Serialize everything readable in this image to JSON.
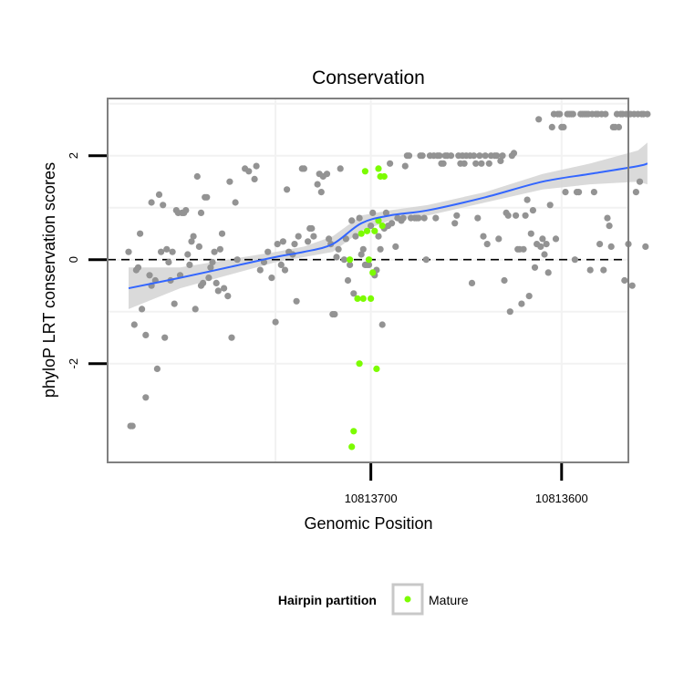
{
  "chart_data": {
    "type": "scatter",
    "title": "Conservation",
    "xlabel": "Genomic Position",
    "ylabel": "phyloP LRT conservation scores",
    "x_reversed": true,
    "xlim": [
      10813838,
      10813565
    ],
    "ylim": [
      -3.9,
      3.1
    ],
    "x_ticks": [
      10813700,
      10813600
    ],
    "x_tick_labels": [
      "10813700",
      "10813600"
    ],
    "y_ticks": [
      -2,
      0,
      2
    ],
    "y_tick_labels": [
      "-2",
      "0",
      "2"
    ],
    "grid": true,
    "reference_line": {
      "y": 0,
      "style": "dashed"
    },
    "legend": {
      "title": "Hairpin partition",
      "position": "bottom",
      "entries": [
        {
          "label": "Mature",
          "color": "#7cfc00"
        }
      ]
    },
    "colors": {
      "other": "#939393",
      "mature": "#7cfc00",
      "smooth": "#3366ff",
      "band": "#d3d3d3",
      "panel_border": "#808080"
    },
    "series": [
      {
        "group": "other",
        "points": [
          [
            10813827,
            0.15
          ],
          [
            10813826,
            -3.2
          ],
          [
            10813825,
            -3.2
          ],
          [
            10813824,
            -1.25
          ],
          [
            10813823,
            -0.2
          ],
          [
            10813822,
            -0.15
          ],
          [
            10813821,
            0.5
          ],
          [
            10813820,
            -0.95
          ],
          [
            10813818,
            -1.45
          ],
          [
            10813818,
            -2.65
          ],
          [
            10813816,
            -0.3
          ],
          [
            10813815,
            1.1
          ],
          [
            10813815,
            -0.5
          ],
          [
            10813813,
            -0.4
          ],
          [
            10813812,
            -2.1
          ],
          [
            10813811,
            1.25
          ],
          [
            10813810,
            0.15
          ],
          [
            10813809,
            1.05
          ],
          [
            10813808,
            -1.5
          ],
          [
            10813807,
            0.2
          ],
          [
            10813806,
            -0.05
          ],
          [
            10813805,
            -0.4
          ],
          [
            10813804,
            0.15
          ],
          [
            10813803,
            -0.85
          ],
          [
            10813802,
            0.95
          ],
          [
            10813801,
            0.9
          ],
          [
            10813800,
            -0.3
          ],
          [
            10813799,
            0.9
          ],
          [
            10813798,
            0.9
          ],
          [
            10813797,
            0.95
          ],
          [
            10813796,
            0.1
          ],
          [
            10813795,
            -0.1
          ],
          [
            10813794,
            0.35
          ],
          [
            10813793,
            0.45
          ],
          [
            10813792,
            -0.95
          ],
          [
            10813791,
            1.6
          ],
          [
            10813790,
            0.25
          ],
          [
            10813789,
            -0.5
          ],
          [
            10813789,
            0.9
          ],
          [
            10813788,
            -0.45
          ],
          [
            10813787,
            1.2
          ],
          [
            10813786,
            1.2
          ],
          [
            10813785,
            -0.35
          ],
          [
            10813784,
            -0.15
          ],
          [
            10813783,
            -0.05
          ],
          [
            10813782,
            0.15
          ],
          [
            10813781,
            -0.45
          ],
          [
            10813780,
            -0.6
          ],
          [
            10813779,
            0.2
          ],
          [
            10813778,
            0.5
          ],
          [
            10813777,
            -0.55
          ],
          [
            10813775,
            -0.7
          ],
          [
            10813774,
            1.5
          ],
          [
            10813773,
            -1.5
          ],
          [
            10813771,
            1.1
          ],
          [
            10813770,
            0.0
          ],
          [
            10813766,
            1.75
          ],
          [
            10813764,
            1.7
          ],
          [
            10813761,
            1.55
          ],
          [
            10813760,
            1.8
          ],
          [
            10813758,
            -0.2
          ],
          [
            10813756,
            -0.05
          ],
          [
            10813754,
            0.15
          ],
          [
            10813752,
            -0.35
          ],
          [
            10813750,
            -1.2
          ],
          [
            10813749,
            0.3
          ],
          [
            10813747,
            -0.1
          ],
          [
            10813746,
            0.35
          ],
          [
            10813745,
            -0.2
          ],
          [
            10813744,
            1.35
          ],
          [
            10813743,
            0.15
          ],
          [
            10813741,
            0.1
          ],
          [
            10813740,
            0.3
          ],
          [
            10813739,
            -0.8
          ],
          [
            10813738,
            0.45
          ],
          [
            10813736,
            1.75
          ],
          [
            10813735,
            1.75
          ],
          [
            10813733,
            0.35
          ],
          [
            10813732,
            0.6
          ],
          [
            10813731,
            0.6
          ],
          [
            10813730,
            0.45
          ],
          [
            10813728,
            1.45
          ],
          [
            10813727,
            1.65
          ],
          [
            10813726,
            1.3
          ],
          [
            10813725,
            1.6
          ],
          [
            10813723,
            1.65
          ],
          [
            10813722,
            0.4
          ],
          [
            10813721,
            0.3
          ],
          [
            10813720,
            -1.05
          ],
          [
            10813719,
            -1.05
          ],
          [
            10813718,
            0.05
          ],
          [
            10813717,
            0.2
          ],
          [
            10813716,
            1.75
          ],
          [
            10813714,
            0.0
          ],
          [
            10813713,
            0.4
          ],
          [
            10813712,
            -0.4
          ],
          [
            10813711,
            -0.1
          ],
          [
            10813710,
            0.75
          ],
          [
            10813709,
            -0.65
          ],
          [
            10813708,
            0.45
          ],
          [
            10813706,
            0.8
          ],
          [
            10813705,
            0.1
          ],
          [
            10813704,
            0.2
          ],
          [
            10813703,
            -0.1
          ],
          [
            10813702,
            -0.1
          ],
          [
            10813701,
            -0.1
          ],
          [
            10813700,
            0.65
          ],
          [
            10813699,
            0.9
          ],
          [
            10813698,
            -0.3
          ],
          [
            10813697,
            -0.2
          ],
          [
            10813696,
            0.45
          ],
          [
            10813695,
            0.2
          ],
          [
            10813694,
            -1.25
          ],
          [
            10813693,
            0.6
          ],
          [
            10813692,
            0.9
          ],
          [
            10813691,
            0.65
          ],
          [
            10813690,
            1.85
          ],
          [
            10813689,
            0.7
          ],
          [
            10813687,
            0.25
          ],
          [
            10813686,
            0.8
          ],
          [
            10813684,
            0.75
          ],
          [
            10813683,
            0.8
          ],
          [
            10813682,
            1.8
          ],
          [
            10813681,
            2.0
          ],
          [
            10813680,
            2.0
          ],
          [
            10813679,
            0.8
          ],
          [
            10813677,
            0.8
          ],
          [
            10813676,
            0.8
          ],
          [
            10813675,
            0.8
          ],
          [
            10813674,
            2.0
          ],
          [
            10813673,
            2.0
          ],
          [
            10813672,
            0.8
          ],
          [
            10813671,
            0.0
          ],
          [
            10813669,
            2.0
          ],
          [
            10813667,
            2.0
          ],
          [
            10813666,
            0.8
          ],
          [
            10813665,
            2.0
          ],
          [
            10813664,
            2.0
          ],
          [
            10813663,
            1.85
          ],
          [
            10813662,
            1.85
          ],
          [
            10813661,
            2.0
          ],
          [
            10813660,
            2.0
          ],
          [
            10813658,
            2.0
          ],
          [
            10813656,
            0.7
          ],
          [
            10813655,
            0.85
          ],
          [
            10813654,
            2.0
          ],
          [
            10813653,
            1.85
          ],
          [
            10813652,
            2.0
          ],
          [
            10813651,
            1.85
          ],
          [
            10813650,
            2.0
          ],
          [
            10813648,
            2.0
          ],
          [
            10813647,
            -0.45
          ],
          [
            10813646,
            2.0
          ],
          [
            10813645,
            1.85
          ],
          [
            10813644,
            0.8
          ],
          [
            10813643,
            2.0
          ],
          [
            10813642,
            1.85
          ],
          [
            10813641,
            0.45
          ],
          [
            10813640,
            2.0
          ],
          [
            10813639,
            0.3
          ],
          [
            10813638,
            1.85
          ],
          [
            10813637,
            2.0
          ],
          [
            10813635,
            2.0
          ],
          [
            10813634,
            2.0
          ],
          [
            10813633,
            0.4
          ],
          [
            10813632,
            1.9
          ],
          [
            10813631,
            2.0
          ],
          [
            10813630,
            -0.4
          ],
          [
            10813629,
            0.9
          ],
          [
            10813628,
            0.85
          ],
          [
            10813627,
            -1.0
          ],
          [
            10813626,
            2.0
          ],
          [
            10813625,
            2.05
          ],
          [
            10813624,
            0.85
          ],
          [
            10813623,
            0.2
          ],
          [
            10813622,
            0.2
          ],
          [
            10813621,
            -0.85
          ],
          [
            10813620,
            0.2
          ],
          [
            10813619,
            0.85
          ],
          [
            10813618,
            1.15
          ],
          [
            10813617,
            -0.7
          ],
          [
            10813616,
            0.5
          ],
          [
            10813615,
            0.95
          ],
          [
            10813614,
            -0.15
          ],
          [
            10813613,
            0.3
          ],
          [
            10813612,
            2.7
          ],
          [
            10813611,
            0.25
          ],
          [
            10813610,
            0.4
          ],
          [
            10813609,
            0.1
          ],
          [
            10813608,
            0.3
          ],
          [
            10813607,
            -0.25
          ],
          [
            10813606,
            1.05
          ],
          [
            10813605,
            2.55
          ],
          [
            10813604,
            2.8
          ],
          [
            10813603,
            0.4
          ],
          [
            10813602,
            2.8
          ],
          [
            10813601,
            2.8
          ],
          [
            10813600,
            2.55
          ],
          [
            10813599,
            2.55
          ],
          [
            10813598,
            1.3
          ],
          [
            10813597,
            2.8
          ],
          [
            10813596,
            2.8
          ],
          [
            10813595,
            2.8
          ],
          [
            10813594,
            2.8
          ],
          [
            10813593,
            0.0
          ],
          [
            10813592,
            1.3
          ],
          [
            10813591,
            1.3
          ],
          [
            10813590,
            2.8
          ],
          [
            10813589,
            2.8
          ],
          [
            10813588,
            2.8
          ],
          [
            10813587,
            2.8
          ],
          [
            10813586,
            2.8
          ],
          [
            10813585,
            -0.2
          ],
          [
            10813584,
            2.8
          ],
          [
            10813583,
            1.3
          ],
          [
            10813582,
            2.8
          ],
          [
            10813581,
            2.8
          ],
          [
            10813580,
            0.3
          ],
          [
            10813579,
            2.8
          ],
          [
            10813578,
            -0.2
          ],
          [
            10813577,
            2.8
          ],
          [
            10813576,
            0.8
          ],
          [
            10813575,
            0.65
          ],
          [
            10813574,
            0.25
          ],
          [
            10813573,
            2.55
          ],
          [
            10813572,
            2.55
          ],
          [
            10813571,
            2.8
          ],
          [
            10813570,
            2.55
          ],
          [
            10813569,
            2.8
          ],
          [
            10813568,
            2.8
          ],
          [
            10813567,
            -0.4
          ],
          [
            10813566,
            2.8
          ],
          [
            10813565,
            0.3
          ],
          [
            10813564,
            2.8
          ],
          [
            10813563,
            -0.5
          ],
          [
            10813562,
            2.8
          ],
          [
            10813561,
            1.3
          ],
          [
            10813560,
            2.8
          ],
          [
            10813559,
            1.5
          ],
          [
            10813558,
            2.8
          ],
          [
            10813557,
            2.8
          ],
          [
            10813556,
            0.25
          ],
          [
            10813555,
            2.8
          ]
        ]
      },
      {
        "group": "Mature",
        "points": [
          [
            10813711,
            0.0
          ],
          [
            10813710,
            -3.6
          ],
          [
            10813709,
            -3.3
          ],
          [
            10813707,
            -0.75
          ],
          [
            10813706,
            -2.0
          ],
          [
            10813705,
            0.5
          ],
          [
            10813704,
            -0.75
          ],
          [
            10813703,
            1.7
          ],
          [
            10813702,
            0.55
          ],
          [
            10813701,
            0.0
          ],
          [
            10813700,
            -0.75
          ],
          [
            10813699,
            -0.25
          ],
          [
            10813698,
            0.55
          ],
          [
            10813697,
            -2.1
          ],
          [
            10813696,
            0.75
          ],
          [
            10813696,
            1.75
          ],
          [
            10813695,
            1.6
          ],
          [
            10813694,
            0.65
          ],
          [
            10813693,
            1.6
          ]
        ]
      }
    ],
    "smooth": {
      "method": "loess",
      "x": [
        10813827,
        10813800,
        10813775,
        10813750,
        10813735,
        10813720,
        10813705,
        10813690,
        10813670,
        10813640,
        10813610,
        10813585,
        10813560,
        10813555
      ],
      "y": [
        -0.55,
        -0.35,
        -0.15,
        0.05,
        0.15,
        0.3,
        0.7,
        0.85,
        0.95,
        1.2,
        1.5,
        1.65,
        1.8,
        1.85
      ],
      "se_lower": [
        -0.95,
        -0.55,
        -0.3,
        -0.05,
        0.05,
        0.15,
        0.55,
        0.75,
        0.85,
        1.1,
        1.35,
        1.45,
        1.5,
        1.45
      ],
      "se_upper": [
        -0.15,
        -0.15,
        0.0,
        0.15,
        0.25,
        0.45,
        0.85,
        0.95,
        1.05,
        1.3,
        1.65,
        1.85,
        2.1,
        2.25
      ]
    }
  }
}
